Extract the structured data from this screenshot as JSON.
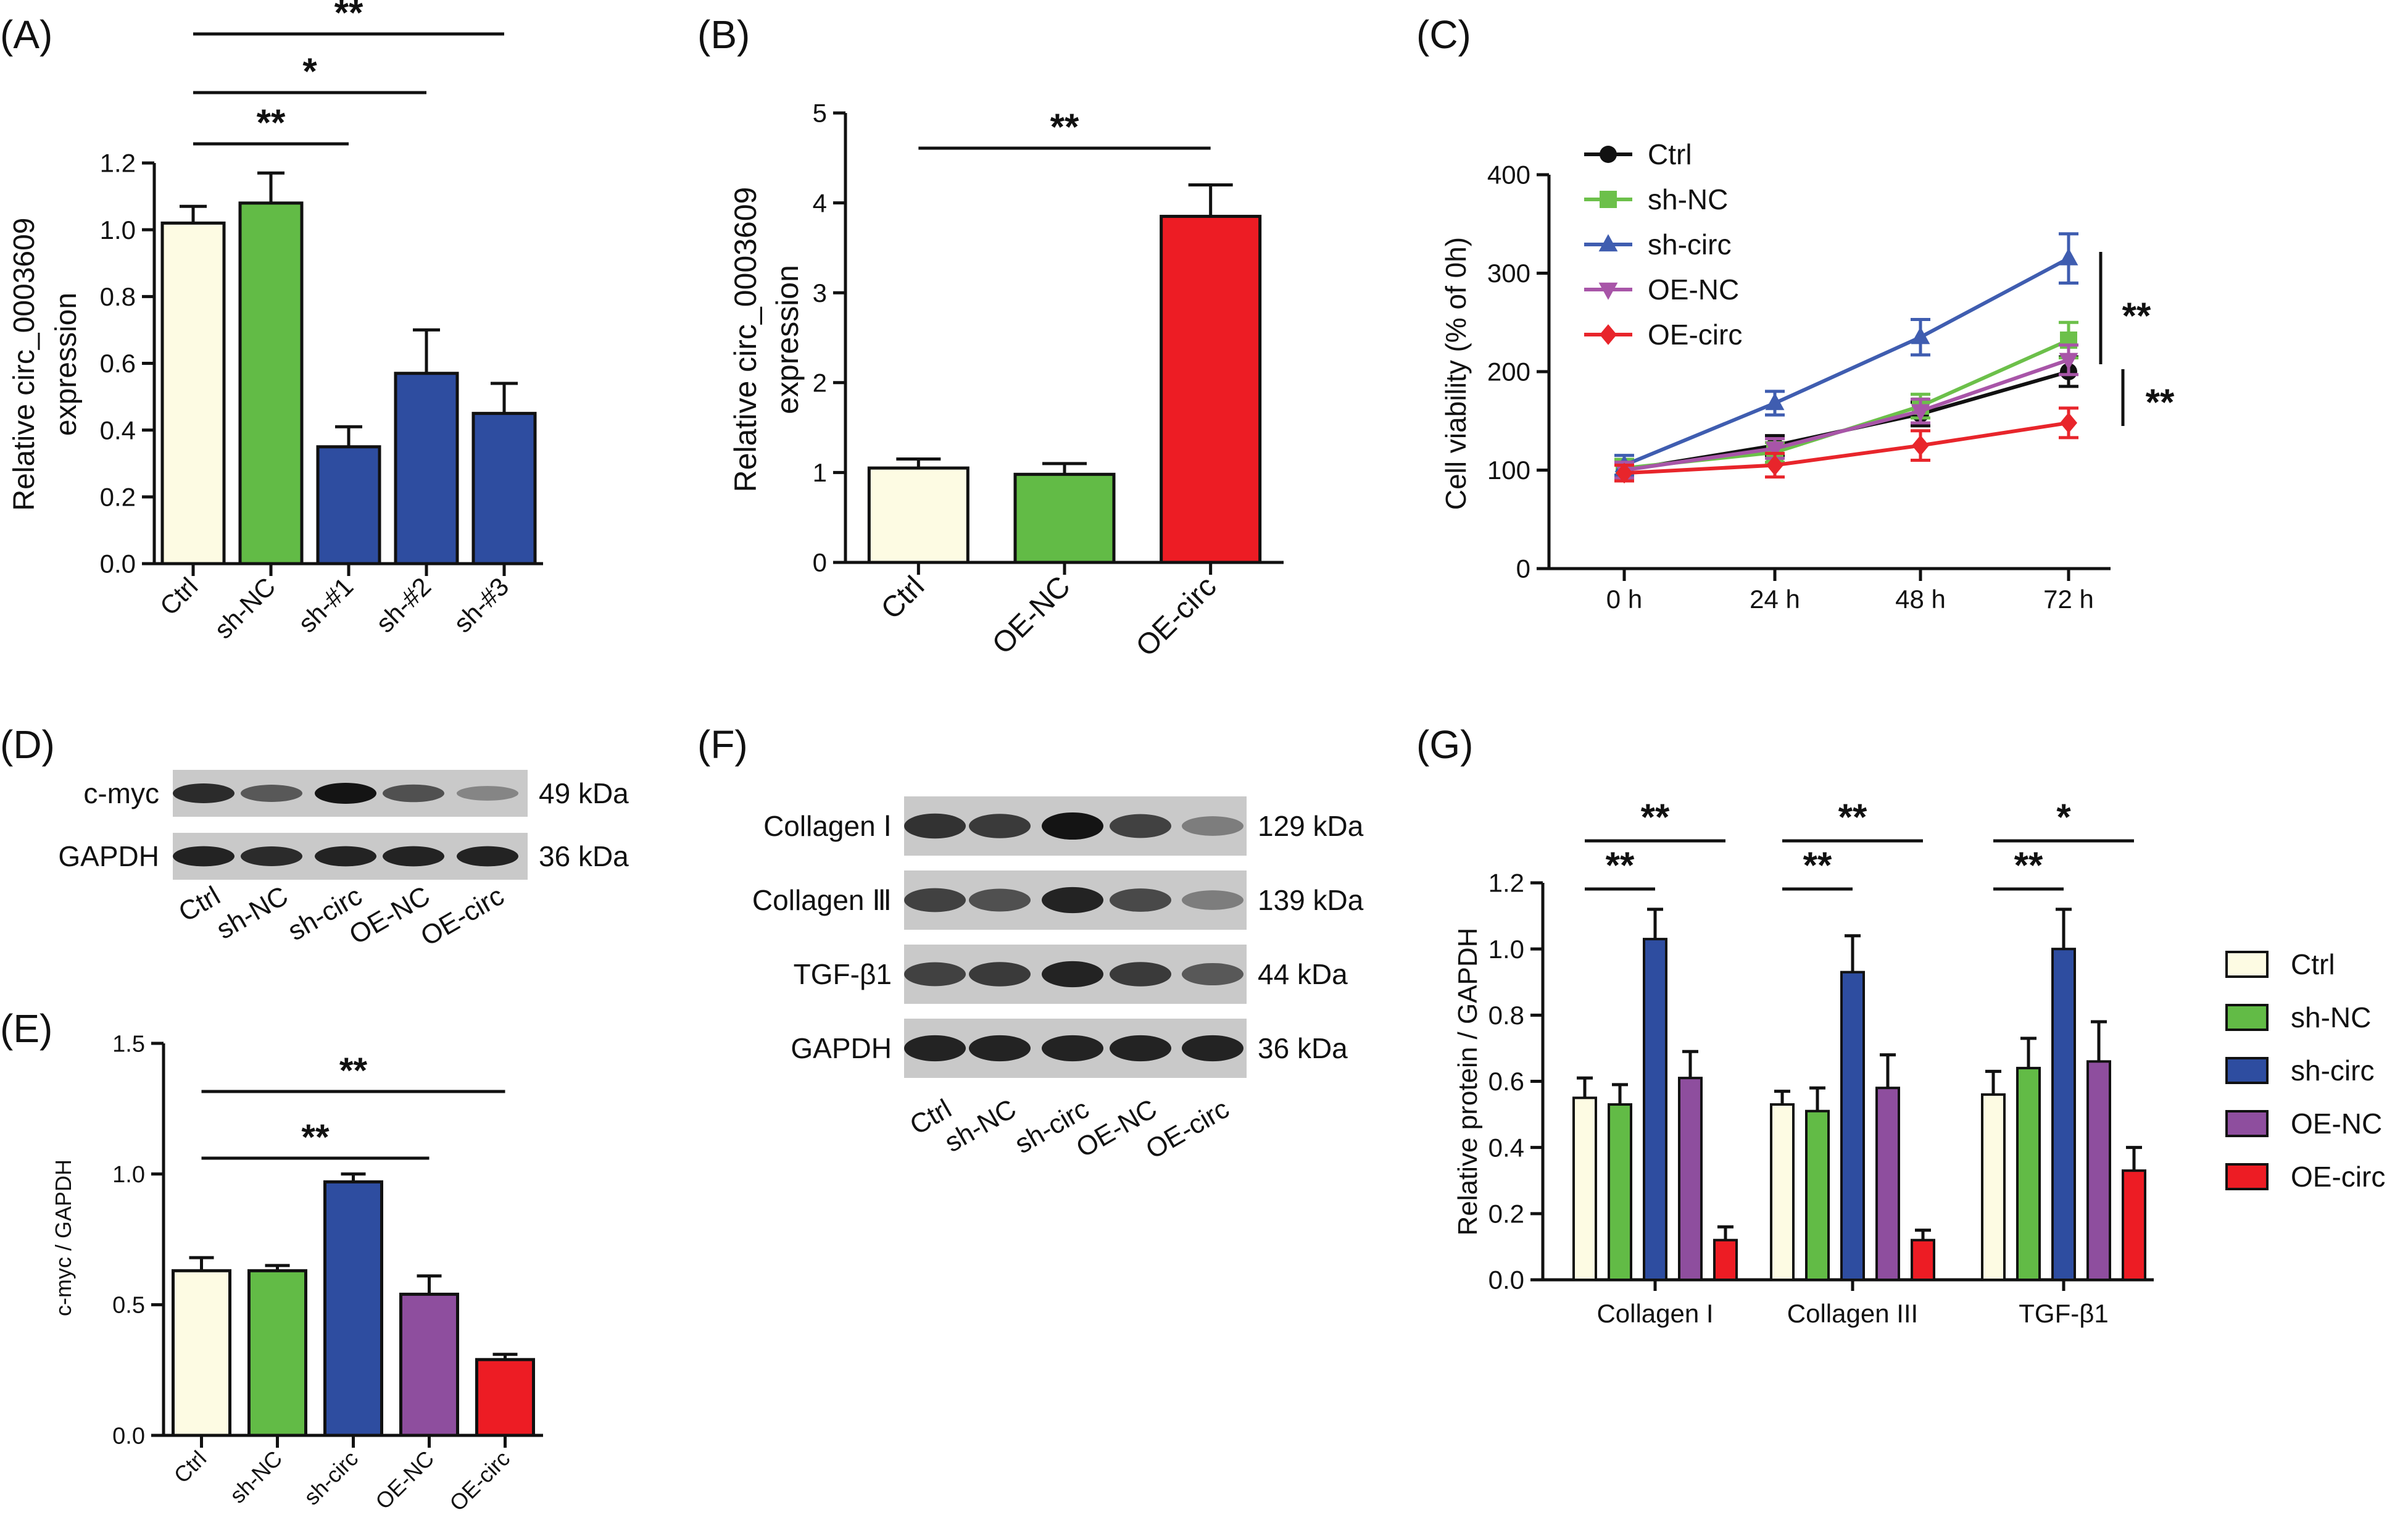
{
  "figure": {
    "panel_labels": [
      "(A)",
      "(B)",
      "(C)",
      "(D)",
      "(E)",
      "(F)",
      "(G)"
    ]
  },
  "colors": {
    "ctrl": "#FDFBE3",
    "sh_nc": "#62BB46",
    "sh": "#2E4DA0",
    "oe_nc": "#8E4E9E",
    "oe_circ": "#ED1C24",
    "line_ctrl": "#111111",
    "line_sh_nc": "#6CC04A",
    "line_sh_circ": "#3F5DB0",
    "line_oe_nc": "#A855A8",
    "line_oe_circ": "#E8252B"
  },
  "chart_data": [
    {
      "panel": "(A)",
      "type": "bar",
      "ylabel": [
        "Relative circ_0003609",
        "expression"
      ],
      "ylim": [
        0,
        1.2
      ],
      "yticks": [
        "0.0",
        "0.2",
        "0.4",
        "0.6",
        "0.8",
        "1.0",
        "1.2"
      ],
      "categories": [
        "Ctrl",
        "sh-NC",
        "sh-#1",
        "sh-#2",
        "sh-#3"
      ],
      "values": [
        1.02,
        1.08,
        0.35,
        0.57,
        0.45
      ],
      "errors": [
        0.05,
        0.09,
        0.06,
        0.13,
        0.09
      ],
      "colors": [
        "#FDFBE3",
        "#62BB46",
        "#2E4DA0",
        "#2E4DA0",
        "#2E4DA0"
      ],
      "significance": [
        {
          "from": 0,
          "to": 2,
          "label": "**"
        },
        {
          "from": 0,
          "to": 3,
          "label": "*"
        },
        {
          "from": 0,
          "to": 4,
          "label": "**"
        }
      ]
    },
    {
      "panel": "(B)",
      "type": "bar",
      "ylabel": [
        "Relative circ_0003609",
        "expression"
      ],
      "ylim": [
        0,
        5
      ],
      "yticks": [
        "0",
        "1",
        "2",
        "3",
        "4",
        "5"
      ],
      "categories": [
        "Ctrl",
        "OE-NC",
        "OE-circ"
      ],
      "values": [
        1.05,
        0.98,
        3.85
      ],
      "errors": [
        0.1,
        0.12,
        0.35
      ],
      "colors": [
        "#FDFBE3",
        "#62BB46",
        "#ED1C24"
      ],
      "significance": [
        {
          "from": 0,
          "to": 2,
          "label": "**"
        }
      ]
    },
    {
      "panel": "(C)",
      "type": "line",
      "ylabel": "Cell viability (% of 0h)",
      "ylim": [
        0,
        400
      ],
      "yticks": [
        "0",
        "100",
        "200",
        "300",
        "400"
      ],
      "x": [
        "0 h",
        "24 h",
        "48 h",
        "72 h"
      ],
      "series": [
        {
          "name": "Ctrl",
          "values": [
            100,
            125,
            157,
            200
          ],
          "errors": [
            8,
            10,
            12,
            15
          ],
          "color": "#111111",
          "marker": "circle"
        },
        {
          "name": "sh-NC",
          "values": [
            102,
            118,
            165,
            232
          ],
          "errors": [
            9,
            10,
            12,
            18
          ],
          "color": "#6CC04A",
          "marker": "square"
        },
        {
          "name": "sh-circ",
          "values": [
            105,
            168,
            235,
            315
          ],
          "errors": [
            10,
            12,
            18,
            25
          ],
          "color": "#3F5DB0",
          "marker": "triangle-up"
        },
        {
          "name": "OE-NC",
          "values": [
            100,
            122,
            160,
            212
          ],
          "errors": [
            8,
            10,
            12,
            15
          ],
          "color": "#A855A8",
          "marker": "triangle-down"
        },
        {
          "name": "OE-circ",
          "values": [
            97,
            105,
            125,
            148
          ],
          "errors": [
            8,
            12,
            15,
            15
          ],
          "color": "#E8252B",
          "marker": "diamond"
        }
      ],
      "significance": [
        "**",
        "**"
      ]
    },
    {
      "panel": "(E)",
      "type": "bar",
      "ylabel": "c-myc / GAPDH",
      "ylim": [
        0,
        1.5
      ],
      "yticks": [
        "0.0",
        "0.5",
        "1.0",
        "1.5"
      ],
      "categories": [
        "Ctrl",
        "sh-NC",
        "sh-circ",
        "OE-NC",
        "OE-circ"
      ],
      "values": [
        0.63,
        0.63,
        0.97,
        0.54,
        0.29
      ],
      "errors": [
        0.05,
        0.02,
        0.03,
        0.07,
        0.02
      ],
      "colors": [
        "#FDFBE3",
        "#62BB46",
        "#2E4DA0",
        "#8E4E9E",
        "#ED1C24"
      ],
      "significance": [
        {
          "from": 0,
          "to": 3,
          "label": "**"
        },
        {
          "from": 0,
          "to": 4,
          "label": "**"
        }
      ]
    },
    {
      "panel": "(G)",
      "type": "bar",
      "ylabel": "Relative protein / GAPDH",
      "ylim": [
        0,
        1.2
      ],
      "yticks": [
        "0.0",
        "0.2",
        "0.4",
        "0.6",
        "0.8",
        "1.0",
        "1.2"
      ],
      "categories": [
        "Collagen I",
        "Collagen III",
        "TGF-β1"
      ],
      "series": [
        {
          "name": "Ctrl",
          "values": [
            0.55,
            0.53,
            0.56
          ],
          "errors": [
            0.06,
            0.04,
            0.07
          ],
          "color": "#FDFBE3"
        },
        {
          "name": "sh-NC",
          "values": [
            0.53,
            0.51,
            0.64
          ],
          "errors": [
            0.06,
            0.07,
            0.09
          ],
          "color": "#62BB46"
        },
        {
          "name": "sh-circ",
          "values": [
            1.03,
            0.93,
            1.0
          ],
          "errors": [
            0.09,
            0.11,
            0.12
          ],
          "color": "#2E4DA0"
        },
        {
          "name": "OE-NC",
          "values": [
            0.61,
            0.58,
            0.66
          ],
          "errors": [
            0.08,
            0.1,
            0.12
          ],
          "color": "#8E4E9E"
        },
        {
          "name": "OE-circ",
          "values": [
            0.12,
            0.12,
            0.33
          ],
          "errors": [
            0.04,
            0.03,
            0.07
          ],
          "color": "#ED1C24"
        }
      ],
      "significance": [
        {
          "group": 0,
          "lower": "**",
          "upper": "**"
        },
        {
          "group": 1,
          "lower": "**",
          "upper": "**"
        },
        {
          "group": 2,
          "lower": "**",
          "upper": "*"
        }
      ]
    }
  ],
  "blots": {
    "D": {
      "rows": [
        {
          "label": "c-myc",
          "kda": "49 kDa",
          "intensity": [
            0.85,
            0.55,
            1.0,
            0.6,
            0.25
          ]
        },
        {
          "label": "GAPDH",
          "kda": "36 kDa",
          "intensity": [
            0.9,
            0.85,
            0.9,
            0.9,
            0.9
          ]
        }
      ],
      "lanes": [
        "Ctrl",
        "sh-NC",
        "sh-circ",
        "OE-NC",
        "OE-circ"
      ]
    },
    "F": {
      "rows": [
        {
          "label": "Collagen Ⅰ",
          "kda": "129 kDa",
          "intensity": [
            0.8,
            0.75,
            1.0,
            0.7,
            0.3
          ]
        },
        {
          "label": "Collagen Ⅲ",
          "kda": "139 kDa",
          "intensity": [
            0.7,
            0.6,
            0.9,
            0.65,
            0.3
          ]
        },
        {
          "label": "TGF-β1",
          "kda": "44 kDa",
          "intensity": [
            0.7,
            0.75,
            0.9,
            0.75,
            0.55
          ]
        },
        {
          "label": "GAPDH",
          "kda": "36 kDa",
          "intensity": [
            0.9,
            0.9,
            0.9,
            0.9,
            0.9
          ]
        }
      ],
      "lanes": [
        "Ctrl",
        "sh-NC",
        "sh-circ",
        "OE-NC",
        "OE-circ"
      ]
    }
  }
}
